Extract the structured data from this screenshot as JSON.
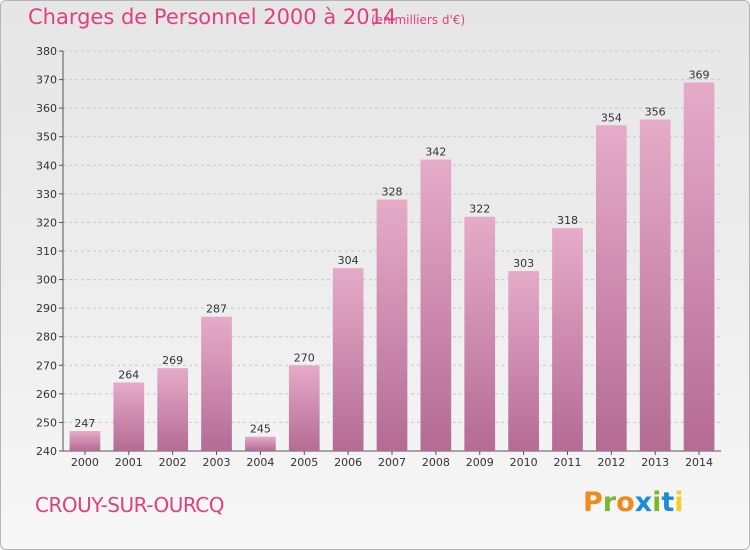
{
  "header": {
    "title": "Charges de Personnel 2000 à 2014",
    "subtitle": "(en milliers d'€)"
  },
  "footer": {
    "commune": "CROUY-SUR-OURCQ",
    "brand": "Proxiti"
  },
  "colors": {
    "title": "#e0407c",
    "bar_light": "#e6abc9",
    "bar_dark": "#b46b94",
    "brand_letters": [
      "#f08a1c",
      "#7cb82f",
      "#f08a1c",
      "#1e8bd8",
      "#7cb82f",
      "#1e8bd8",
      "#f0d020"
    ]
  },
  "chart_data": {
    "type": "bar",
    "title": "Charges de Personnel 2000 à 2014",
    "subtitle": "(en milliers d'€)",
    "categories": [
      "2000",
      "2001",
      "2002",
      "2003",
      "2004",
      "2005",
      "2006",
      "2007",
      "2008",
      "2009",
      "2010",
      "2011",
      "2012",
      "2013",
      "2014"
    ],
    "values": [
      247,
      264,
      269,
      287,
      245,
      270,
      304,
      328,
      342,
      322,
      303,
      318,
      354,
      356,
      369
    ],
    "ylim": [
      240,
      380
    ],
    "yticks": [
      240,
      250,
      260,
      270,
      280,
      290,
      300,
      310,
      320,
      330,
      340,
      350,
      360,
      370,
      380
    ],
    "grid": true,
    "data_labels": true
  }
}
